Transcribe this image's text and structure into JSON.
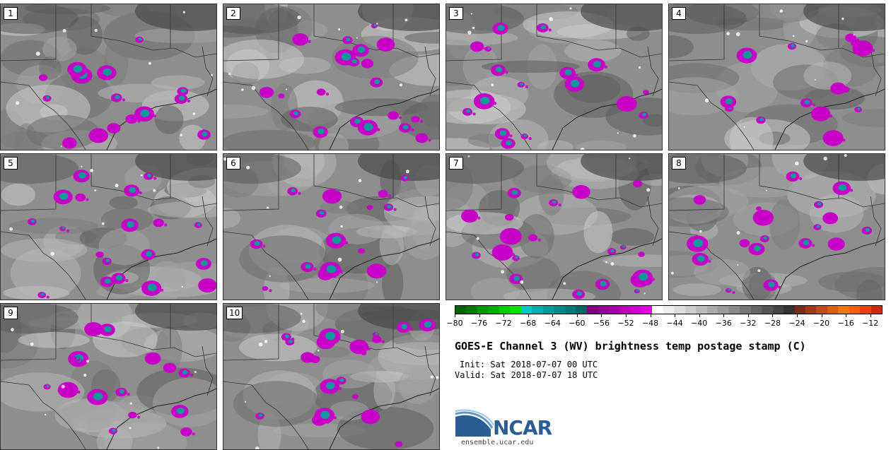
{
  "panels": [
    {
      "label": "1"
    },
    {
      "label": "2"
    },
    {
      "label": "3"
    },
    {
      "label": "4"
    },
    {
      "label": "5"
    },
    {
      "label": "6"
    },
    {
      "label": "7"
    },
    {
      "label": "8"
    },
    {
      "label": "9"
    },
    {
      "label": "10"
    }
  ],
  "chart_data": {
    "type": "heatmap",
    "title": "GOES-E Channel 3 (WV) brightness temp postage stamp (C)",
    "init": "Init: Sat 2018-07-07 00 UTC",
    "valid": "Valid: Sat 2018-07-07 18 UTC",
    "colorbar": {
      "min": -80,
      "max": -10,
      "tick_labels": [
        "−80",
        "−76",
        "−72",
        "−68",
        "−64",
        "−60",
        "−56",
        "−52",
        "−48",
        "−44",
        "−40",
        "−36",
        "−32",
        "−28",
        "−24",
        "−20",
        "−16",
        "−12"
      ],
      "colors": [
        "#006400",
        "#007a00",
        "#009600",
        "#00b000",
        "#00cc00",
        "#00e600",
        "#00c8c8",
        "#00b0b0",
        "#009c9c",
        "#008a8a",
        "#007a7a",
        "#006666",
        "#800080",
        "#940094",
        "#a800a8",
        "#bc00bc",
        "#d000d0",
        "#e600e6",
        "#ffffff",
        "#eeeeee",
        "#dddddd",
        "#cccccc",
        "#bbbbbb",
        "#aaaaaa",
        "#999999",
        "#888888",
        "#777777",
        "#666666",
        "#555555",
        "#444444",
        "#333333",
        "#7a2a1a",
        "#a03a1a",
        "#c04a1a",
        "#d86010",
        "#f07810",
        "#f06010",
        "#e84010",
        "#d02808"
      ]
    }
  },
  "logo": {
    "word": "NCAR",
    "url": "ensemble.ucar.edu"
  }
}
